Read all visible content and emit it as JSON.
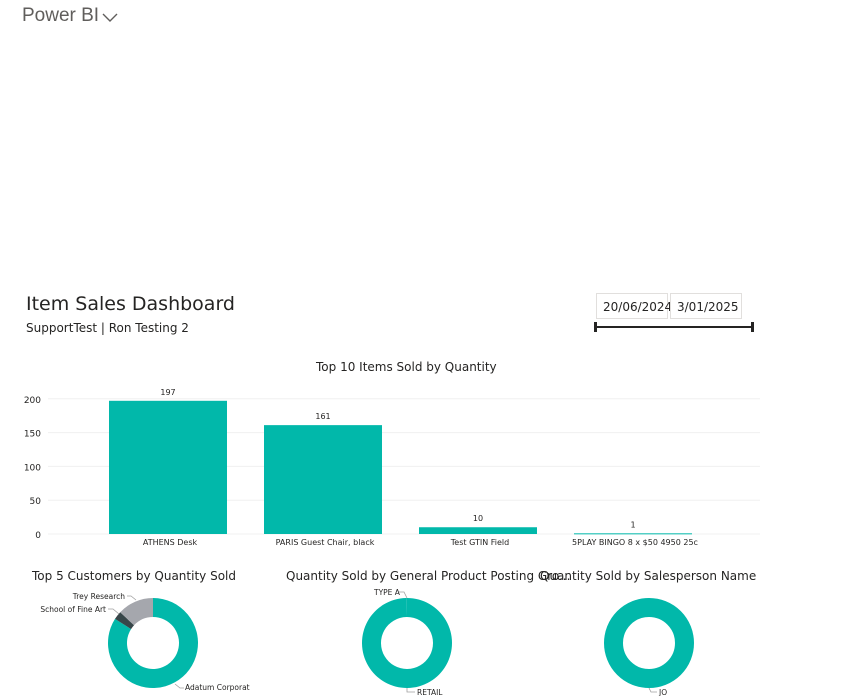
{
  "app": {
    "title": "Power BI",
    "menu_icon": "chevron-down-icon"
  },
  "dashboard": {
    "title": "Item Sales Dashboard",
    "subtitle": "SupportTest | Ron Testing 2"
  },
  "date_slicer": {
    "from": "20/06/2024",
    "to": "3/01/2025"
  },
  "colors": {
    "teal": "#01b8aa",
    "gray": "#a5a7ad",
    "dark": "#374649"
  },
  "chart_data": [
    {
      "type": "bar",
      "title": "Top 10 Items Sold by Quantity",
      "categories": [
        "ATHENS Desk",
        "PARIS Guest Chair, black",
        "Test GTIN Field",
        "5PLAY BINGO 8 x $50 4950 25c"
      ],
      "values": [
        197,
        161,
        10,
        1
      ],
      "yticks": [
        "0",
        "50",
        "100",
        "150",
        "200"
      ],
      "ylim": [
        0,
        210
      ],
      "grid": true
    },
    {
      "type": "pie",
      "title": "Top 5 Customers by Quantity Sold",
      "labels": [
        "Adatum Corporation",
        "School of Fine Art",
        "Trey Research"
      ],
      "values": [
        84,
        3,
        13
      ]
    },
    {
      "type": "pie",
      "title": "Quantity Sold by General Product Posting Gro...",
      "labels": [
        "RETAIL",
        "TYPE A"
      ],
      "values": [
        99.7,
        0.3
      ]
    },
    {
      "type": "pie",
      "title": "Quantity Sold by Salesperson Name",
      "labels": [
        "JO"
      ],
      "values": [
        100
      ]
    }
  ]
}
